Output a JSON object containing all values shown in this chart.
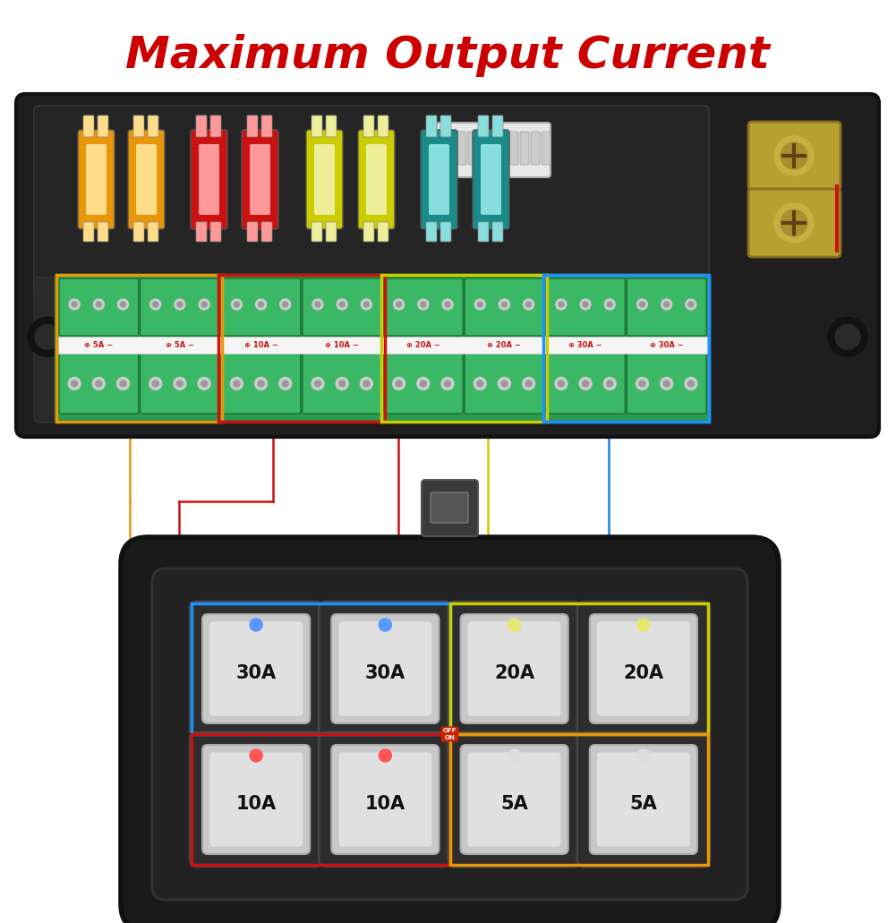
{
  "title": "Maximum Output Current",
  "title_color": "#CC0000",
  "title_fontsize": 36,
  "bg_color": "#FFFFFF",
  "fuse_colors": [
    "#E8960A",
    "#E8960A",
    "#CC1111",
    "#CC1111",
    "#CCCC00",
    "#CCCC00",
    "#1A8B8B",
    "#1A8B8B"
  ],
  "label_texts": [
    "⊕ 5A −",
    "⊕ 5A −",
    "⊕ 10A −",
    "⊕ 10A −",
    "⊕ 20A −",
    "⊕ 20A −",
    "⊕ 30A −",
    "⊕ 30A −"
  ],
  "group_box_colors": [
    "#E8960A",
    "#CC1111",
    "#CCCC00",
    "#1E90FF"
  ],
  "switch_labels_row0": [
    "30A",
    "30A",
    "20A",
    "20A"
  ],
  "switch_labels_row1": [
    "10A",
    "10A",
    "5A",
    "5A"
  ],
  "switch_box_colors": [
    "#1E90FF",
    "#CCCC00",
    "#CC1111",
    "#E8960A"
  ],
  "line_colors": {
    "orange": "#E8960A",
    "red": "#CC1111",
    "yellow": "#CCCC00",
    "blue": "#1E90FF"
  }
}
